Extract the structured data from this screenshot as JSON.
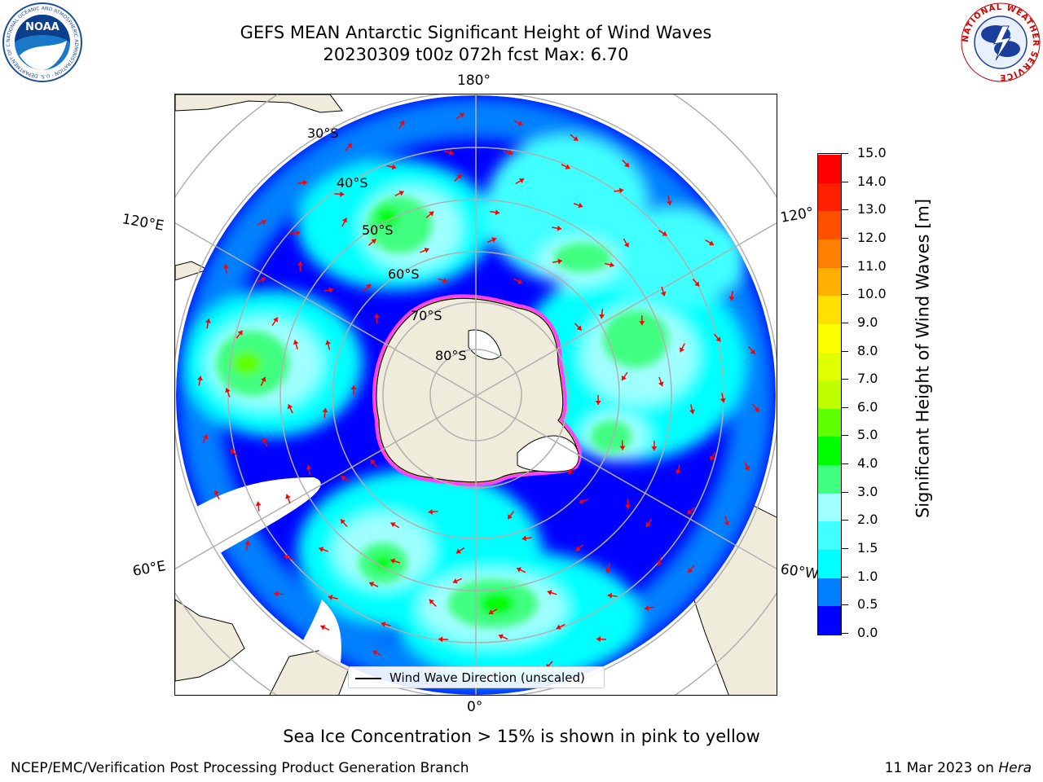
{
  "title": {
    "line1": "GEFS MEAN Antarctic Significant Height of Wind Waves",
    "line2": "20230309 t00z 072h fcst   Max: 6.70"
  },
  "logos": {
    "noaa_text": "NOAA",
    "noaa_ring_text": "NATIONAL OCEANIC AND ATMOSPHERIC ADMINISTRATION · U.S. DEPARTMENT OF COMMERCE",
    "nws_ring_text": "NATIONAL WEATHER SERVICE"
  },
  "map": {
    "longitude_labels": {
      "top": "180°",
      "bottom": "0°",
      "upper_left": "120°E",
      "upper_right": "120°",
      "lower_left": "60°E",
      "lower_right": "60°W"
    },
    "latitude_labels": [
      "30°S",
      "40°S",
      "50°S",
      "60°S",
      "70°S",
      "80°S"
    ],
    "colors": {
      "land": "#efecdc",
      "grid": "#b0b0b0",
      "arrow": "#ff0000",
      "sea_ice": "#ff40ff",
      "sea_ice_edge": "#ffe000"
    }
  },
  "colorbar": {
    "title": "Significant Height of Wind Waves [m]",
    "tick_labels": [
      "0.0",
      "0.5",
      "1.0",
      "1.5",
      "2.0",
      "3.0",
      "4.0",
      "5.0",
      "6.0",
      "7.0",
      "8.0",
      "9.0",
      "10.0",
      "11.0",
      "12.0",
      "13.0",
      "14.0",
      "15.0"
    ],
    "colors": [
      "#0000ff",
      "#0080ff",
      "#00ffff",
      "#40ffff",
      "#a0ffff",
      "#40ff80",
      "#00ff00",
      "#60ff00",
      "#c0ff00",
      "#e0ff00",
      "#ffff00",
      "#ffe000",
      "#ffb000",
      "#ff8000",
      "#ff5000",
      "#ff2000",
      "#ff0000"
    ]
  },
  "legend": {
    "label": "Wind Wave Direction (unscaled)"
  },
  "footer": {
    "note": "Sea Ice Concentration > 15% is shown in pink to yellow",
    "credit": "NCEP/EMC/Verification Post Processing Product Generation Branch",
    "date": "11 Mar 2023 on",
    "machine": "Hera"
  }
}
